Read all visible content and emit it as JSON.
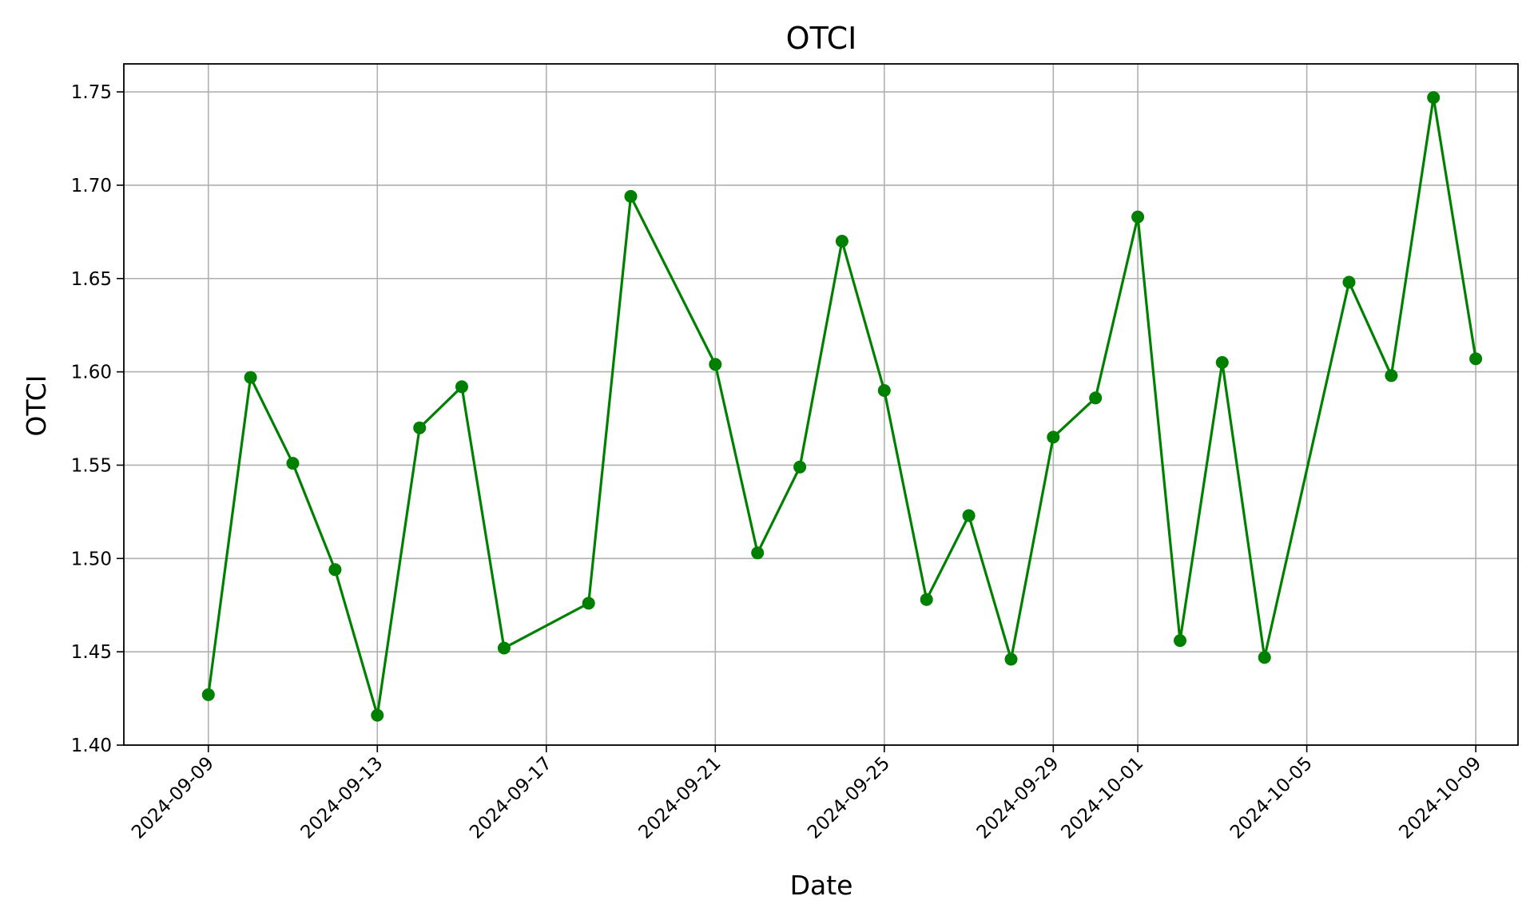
{
  "chart_data": {
    "type": "line",
    "title": "OTCI",
    "xlabel": "Date",
    "ylabel": "OTCI",
    "color": "#008000",
    "marker": "circle",
    "grid": true,
    "legend": false,
    "xlim": [
      "2024-09-07",
      "2024-10-10"
    ],
    "ylim": [
      1.4,
      1.765
    ],
    "x_ticks": [
      "2024-09-09",
      "2024-09-13",
      "2024-09-17",
      "2024-09-21",
      "2024-09-25",
      "2024-09-29",
      "2024-10-01",
      "2024-10-05",
      "2024-10-09"
    ],
    "y_ticks": [
      "1.40",
      "1.45",
      "1.50",
      "1.55",
      "1.60",
      "1.65",
      "1.70",
      "1.75"
    ],
    "series": [
      {
        "x": [
          "2024-09-09",
          "2024-09-10",
          "2024-09-11",
          "2024-09-12",
          "2024-09-13",
          "2024-09-14",
          "2024-09-15",
          "2024-09-16",
          "2024-09-18",
          "2024-09-19",
          "2024-09-21",
          "2024-09-22",
          "2024-09-23",
          "2024-09-24",
          "2024-09-25",
          "2024-09-26",
          "2024-09-27",
          "2024-09-28",
          "2024-09-29",
          "2024-09-30",
          "2024-10-01",
          "2024-10-02",
          "2024-10-03",
          "2024-10-04",
          "2024-10-06",
          "2024-10-07",
          "2024-10-08",
          "2024-10-09"
        ],
        "values": [
          1.427,
          1.597,
          1.551,
          1.494,
          1.416,
          1.57,
          1.592,
          1.452,
          1.476,
          1.694,
          1.604,
          1.503,
          1.549,
          1.67,
          1.59,
          1.478,
          1.523,
          1.446,
          1.565,
          1.586,
          1.683,
          1.456,
          1.605,
          1.447,
          1.648,
          1.598,
          1.747,
          1.607
        ]
      }
    ]
  }
}
